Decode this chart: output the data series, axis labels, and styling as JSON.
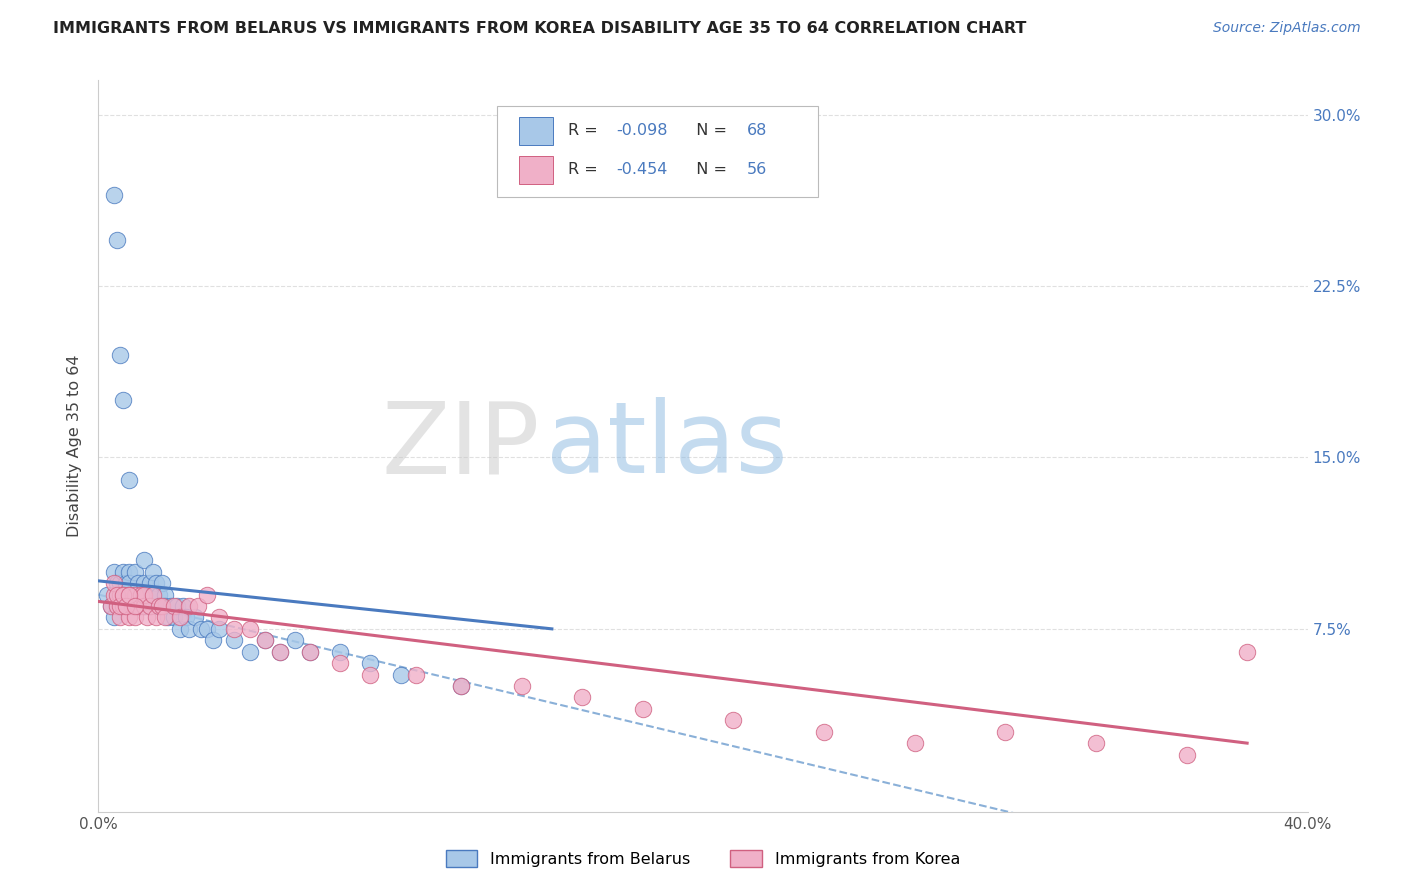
{
  "title": "IMMIGRANTS FROM BELARUS VS IMMIGRANTS FROM KOREA DISABILITY AGE 35 TO 64 CORRELATION CHART",
  "source": "Source: ZipAtlas.com",
  "ylabel": "Disability Age 35 to 64",
  "x_min": 0.0,
  "x_max": 0.4,
  "y_min": -0.005,
  "y_max": 0.315,
  "y_ticks": [
    0.0,
    0.075,
    0.15,
    0.225,
    0.3
  ],
  "y_tick_labels_right": [
    "",
    "7.5%",
    "15.0%",
    "22.5%",
    "30.0%"
  ],
  "legend_label1": "Immigrants from Belarus",
  "legend_label2": "Immigrants from Korea",
  "blue_fill": "#a8c8e8",
  "blue_edge": "#4a7abf",
  "pink_fill": "#f0b0c8",
  "pink_edge": "#d06080",
  "line_blue": "#4a7abf",
  "line_pink": "#d06080",
  "line_dashed_color": "#8ab0d8",
  "title_color": "#222222",
  "source_color": "#4a7abf",
  "axis_color": "#cccccc",
  "grid_color": "#e0e0e0",
  "watermark_zip_color": "#c8c8c8",
  "watermark_atlas_color": "#8ab8e0",
  "belarus_x": [
    0.003,
    0.004,
    0.005,
    0.005,
    0.006,
    0.006,
    0.007,
    0.007,
    0.008,
    0.008,
    0.009,
    0.009,
    0.01,
    0.01,
    0.01,
    0.011,
    0.011,
    0.012,
    0.012,
    0.013,
    0.013,
    0.014,
    0.014,
    0.015,
    0.015,
    0.015,
    0.016,
    0.016,
    0.017,
    0.017,
    0.018,
    0.018,
    0.019,
    0.019,
    0.02,
    0.02,
    0.021,
    0.021,
    0.022,
    0.022,
    0.023,
    0.024,
    0.025,
    0.026,
    0.027,
    0.028,
    0.029,
    0.03,
    0.032,
    0.034,
    0.036,
    0.038,
    0.04,
    0.045,
    0.05,
    0.055,
    0.06,
    0.065,
    0.07,
    0.08,
    0.09,
    0.1,
    0.12,
    0.005,
    0.006,
    0.007,
    0.008,
    0.01
  ],
  "belarus_y": [
    0.09,
    0.085,
    0.1,
    0.08,
    0.095,
    0.085,
    0.095,
    0.085,
    0.09,
    0.1,
    0.085,
    0.095,
    0.085,
    0.1,
    0.095,
    0.09,
    0.085,
    0.1,
    0.09,
    0.085,
    0.095,
    0.085,
    0.09,
    0.085,
    0.095,
    0.105,
    0.09,
    0.085,
    0.095,
    0.085,
    0.09,
    0.1,
    0.085,
    0.095,
    0.09,
    0.085,
    0.095,
    0.085,
    0.09,
    0.085,
    0.08,
    0.085,
    0.08,
    0.085,
    0.075,
    0.085,
    0.08,
    0.075,
    0.08,
    0.075,
    0.075,
    0.07,
    0.075,
    0.07,
    0.065,
    0.07,
    0.065,
    0.07,
    0.065,
    0.065,
    0.06,
    0.055,
    0.05,
    0.265,
    0.245,
    0.195,
    0.175,
    0.14
  ],
  "korea_x": [
    0.004,
    0.005,
    0.006,
    0.007,
    0.007,
    0.008,
    0.008,
    0.009,
    0.01,
    0.01,
    0.011,
    0.012,
    0.012,
    0.013,
    0.014,
    0.015,
    0.015,
    0.016,
    0.017,
    0.018,
    0.019,
    0.02,
    0.021,
    0.022,
    0.025,
    0.027,
    0.03,
    0.033,
    0.036,
    0.04,
    0.045,
    0.05,
    0.055,
    0.06,
    0.07,
    0.08,
    0.09,
    0.105,
    0.12,
    0.14,
    0.16,
    0.18,
    0.21,
    0.24,
    0.27,
    0.3,
    0.33,
    0.36,
    0.38,
    0.005,
    0.006,
    0.007,
    0.008,
    0.009,
    0.01,
    0.012
  ],
  "korea_y": [
    0.085,
    0.09,
    0.085,
    0.09,
    0.08,
    0.085,
    0.09,
    0.085,
    0.09,
    0.08,
    0.085,
    0.09,
    0.08,
    0.085,
    0.09,
    0.085,
    0.09,
    0.08,
    0.085,
    0.09,
    0.08,
    0.085,
    0.085,
    0.08,
    0.085,
    0.08,
    0.085,
    0.085,
    0.09,
    0.08,
    0.075,
    0.075,
    0.07,
    0.065,
    0.065,
    0.06,
    0.055,
    0.055,
    0.05,
    0.05,
    0.045,
    0.04,
    0.035,
    0.03,
    0.025,
    0.03,
    0.025,
    0.02,
    0.065,
    0.095,
    0.09,
    0.085,
    0.09,
    0.085,
    0.09,
    0.085
  ]
}
